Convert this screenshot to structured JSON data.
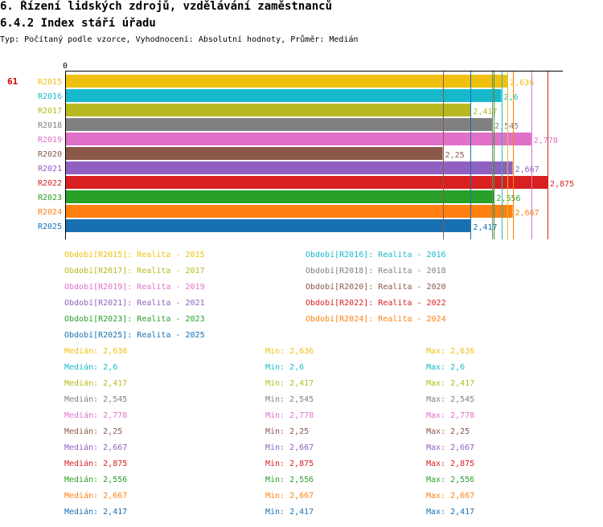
{
  "header": {
    "title": "6. Řízení lidských zdrojů, vzdělávání zaměstnanců",
    "subtitle": "6.4.2 Index stáří úřadu",
    "type_line": "Typ: Počítaný podle vzorce, Vyhodnocení: Absolutní hodnoty, Průměr: Medián"
  },
  "chart_data": {
    "type": "bar",
    "orientation": "horizontal",
    "indicator_number": "61",
    "axis_zero_label": "0",
    "xlim": [
      0,
      3.0
    ],
    "categories": [
      "R2015",
      "R2016",
      "R2017",
      "R2018",
      "R2019",
      "R2020",
      "R2021",
      "R2022",
      "R2023",
      "R2024",
      "R2025"
    ],
    "values": [
      2.636,
      2.6,
      2.417,
      2.545,
      2.778,
      2.25,
      2.667,
      2.875,
      2.556,
      2.667,
      2.417
    ],
    "value_labels": [
      "2,636",
      "2,6",
      "2,417",
      "2,545",
      "2,778",
      "2,25",
      "2,667",
      "2,875",
      "2,556",
      "2,667",
      "2,417"
    ],
    "colors": [
      "#f0c010",
      "#18b8cc",
      "#b8b820",
      "#808080",
      "#e070c8",
      "#8b5848",
      "#9060c0",
      "#d82020",
      "#28a028",
      "#ff8010",
      "#1870b0"
    ]
  },
  "legend": [
    {
      "text": "Období[R2015]: Realita - 2015",
      "color": "#f0c010"
    },
    {
      "text": "Období[R2016]: Realita - 2016",
      "color": "#18b8cc"
    },
    {
      "text": "Období[R2017]: Realita - 2017",
      "color": "#b8b820"
    },
    {
      "text": "Období[R2018]: Realita - 2018",
      "color": "#808080"
    },
    {
      "text": "Období[R2019]: Realita - 2019",
      "color": "#e070c8"
    },
    {
      "text": "Období[R2020]: Realita - 2020",
      "color": "#8b5848"
    },
    {
      "text": "Období[R2021]: Realita - 2021",
      "color": "#9060c0"
    },
    {
      "text": "Období[R2022]: Realita - 2022",
      "color": "#d82020"
    },
    {
      "text": "Období[R2023]: Realita - 2023",
      "color": "#28a028"
    },
    {
      "text": "Období[R2024]: Realita - 2024",
      "color": "#ff8010"
    },
    {
      "text": "Období[R2025]: Realita - 2025",
      "color": "#1870b0"
    }
  ],
  "stats": [
    {
      "median": "Medián: 2,636",
      "min": "Min: 2,636",
      "max": "Max: 2,636",
      "color": "#f0c010"
    },
    {
      "median": "Medián: 2,6",
      "min": "Min: 2,6",
      "max": "Max: 2,6",
      "color": "#18b8cc"
    },
    {
      "median": "Medián: 2,417",
      "min": "Min: 2,417",
      "max": "Max: 2,417",
      "color": "#b8b820"
    },
    {
      "median": "Medián: 2,545",
      "min": "Min: 2,545",
      "max": "Max: 2,545",
      "color": "#808080"
    },
    {
      "median": "Medián: 2,778",
      "min": "Min: 2,778",
      "max": "Max: 2,778",
      "color": "#e070c8"
    },
    {
      "median": "Medián: 2,25",
      "min": "Min: 2,25",
      "max": "Max: 2,25",
      "color": "#8b5848"
    },
    {
      "median": "Medián: 2,667",
      "min": "Min: 2,667",
      "max": "Max: 2,667",
      "color": "#9060c0"
    },
    {
      "median": "Medián: 2,875",
      "min": "Min: 2,875",
      "max": "Max: 2,875",
      "color": "#d82020"
    },
    {
      "median": "Medián: 2,556",
      "min": "Min: 2,556",
      "max": "Max: 2,556",
      "color": "#28a028"
    },
    {
      "median": "Medián: 2,667",
      "min": "Min: 2,667",
      "max": "Max: 2,667",
      "color": "#ff8010"
    },
    {
      "median": "Medián: 2,417",
      "min": "Min: 2,417",
      "max": "Max: 2,417",
      "color": "#1870b0"
    }
  ]
}
